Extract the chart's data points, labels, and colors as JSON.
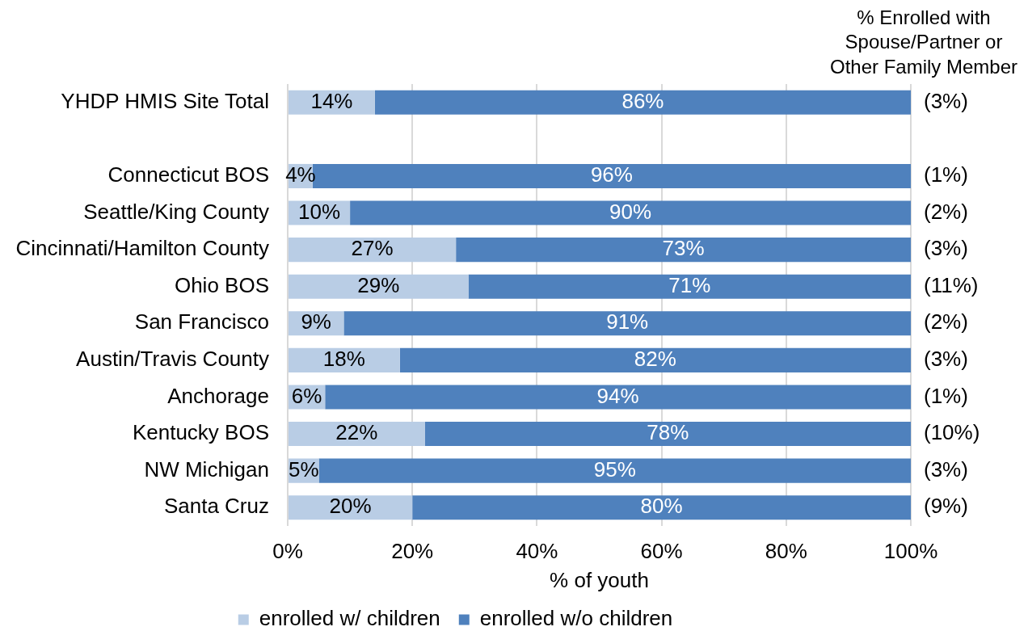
{
  "chart_data": {
    "type": "bar",
    "orientation": "horizontal",
    "stacked": true,
    "categories": [
      "YHDP HMIS Site Total",
      null,
      "Connecticut BOS",
      "Seattle/King County",
      "Cincinnati/Hamilton County",
      "Ohio BOS",
      "San Francisco",
      "Austin/Travis County",
      "Anchorage",
      "Kentucky BOS",
      "NW Michigan",
      "Santa Cruz"
    ],
    "series": [
      {
        "name": "enrolled w/ children",
        "color": "#b9cde5",
        "values": [
          14,
          null,
          4,
          10,
          27,
          29,
          9,
          18,
          6,
          22,
          5,
          20
        ],
        "value_labels": [
          "14%",
          null,
          "4%",
          "10%",
          "27%",
          "29%",
          "9%",
          "18%",
          "6%",
          "22%",
          "5%",
          "20%"
        ]
      },
      {
        "name": "enrolled w/o children",
        "color": "#4f81bd",
        "values": [
          86,
          null,
          96,
          90,
          73,
          71,
          91,
          82,
          94,
          78,
          95,
          80
        ],
        "value_labels": [
          "86%",
          null,
          "96%",
          "90%",
          "73%",
          "71%",
          "91%",
          "82%",
          "94%",
          "78%",
          "95%",
          "80%"
        ]
      }
    ],
    "xlim": [
      0,
      100
    ],
    "xticks": [
      {
        "value": 0,
        "label": "0%"
      },
      {
        "value": 20,
        "label": "20%"
      },
      {
        "value": 40,
        "label": "40%"
      },
      {
        "value": 60,
        "label": "60%"
      },
      {
        "value": 80,
        "label": "80%"
      },
      {
        "value": 100,
        "label": "100%"
      }
    ],
    "xlabel": "% of youth",
    "grid": "x",
    "legend": "bottom",
    "annotations": [
      "% Enrolled with Spouse/Partner or Other Family Member",
      "(3%)",
      "(1%)",
      "(2%)",
      "(3%)",
      "(11%)",
      "(2%)",
      "(3%)",
      "(1%)",
      "(10%)",
      "(3%)",
      "(9%)"
    ]
  }
}
